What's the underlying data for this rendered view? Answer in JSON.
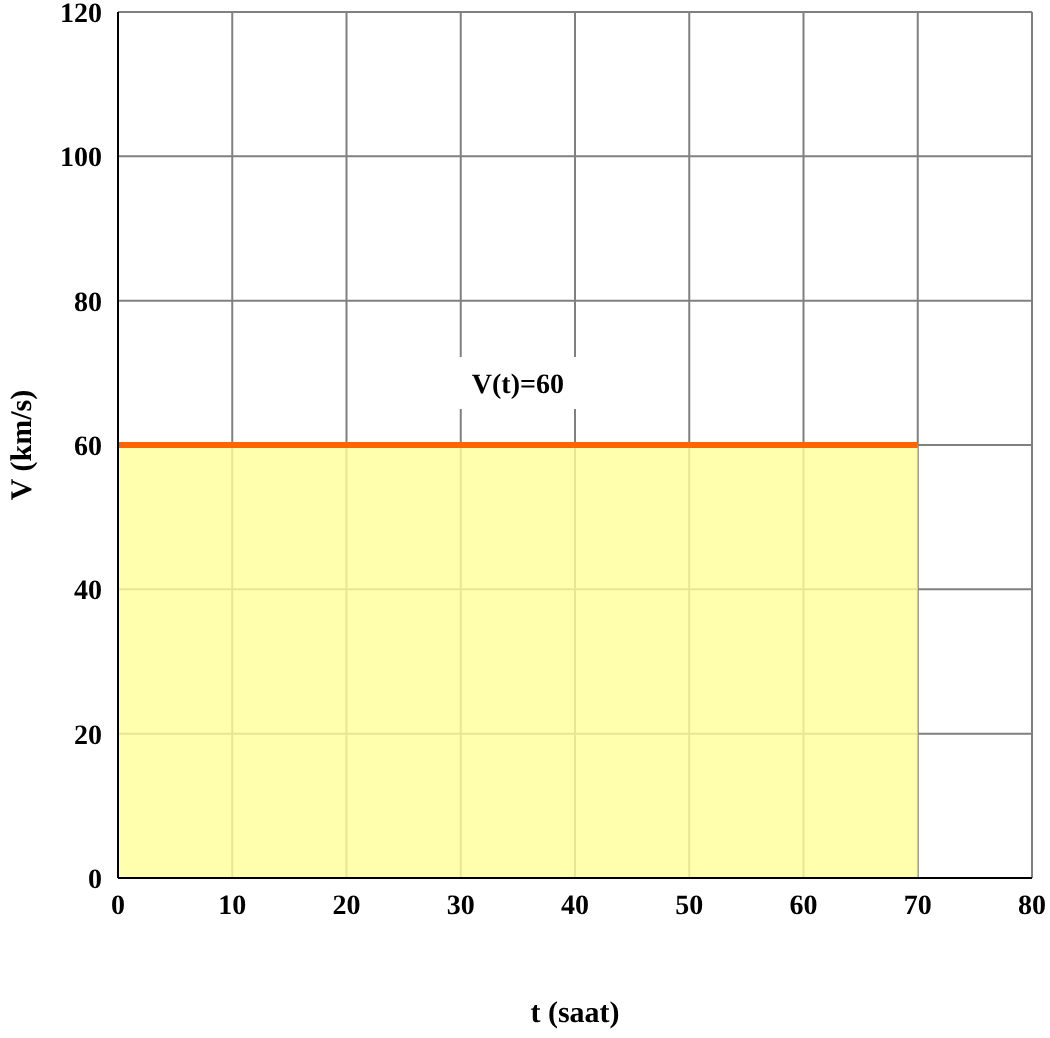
{
  "chart_data": {
    "type": "area",
    "xlabel": "t (saat)",
    "ylabel": "V (km/s)",
    "x": [
      0,
      70
    ],
    "series": [
      {
        "color": "#ff6600",
        "values": [
          60,
          60
        ]
      }
    ],
    "xlim": [
      0,
      80
    ],
    "xticks": [
      0,
      10,
      20,
      30,
      40,
      50,
      60,
      70,
      80
    ],
    "ylim": [
      0,
      120
    ],
    "yticks": [
      0,
      20,
      40,
      60,
      80,
      100,
      120
    ],
    "grid": true,
    "annotations": [
      {
        "text": "V(t)=60",
        "x": 35,
        "y": 60
      }
    ]
  }
}
